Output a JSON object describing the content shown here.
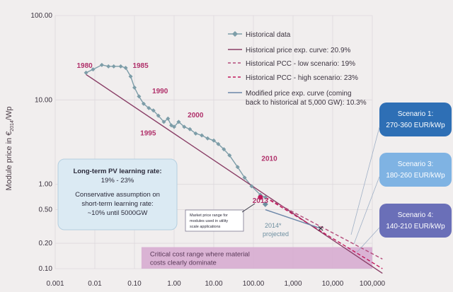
{
  "chart_data": {
    "type": "line",
    "title": "",
    "xlabel": "",
    "ylabel": "Module price in €",
    "ylabel_sub": "2014",
    "ylabel_unit": "/Wp",
    "x_scale": "log",
    "y_scale": "log",
    "xlim": [
      0.001,
      100000
    ],
    "ylim": [
      0.1,
      100
    ],
    "x_ticks": [
      {
        "value": 0.001,
        "label": "0.001"
      },
      {
        "value": 0.01,
        "label": "0.01"
      },
      {
        "value": 0.1,
        "label": "0.10"
      },
      {
        "value": 1,
        "label": "1.00"
      },
      {
        "value": 10,
        "label": "10.00"
      },
      {
        "value": 100,
        "label": "100.00"
      },
      {
        "value": 1000,
        "label": "1,000"
      },
      {
        "value": 10000,
        "label": "10,000"
      },
      {
        "value": 100000,
        "label": "100,000"
      }
    ],
    "y_ticks": [
      {
        "value": 100,
        "label": "100.00"
      },
      {
        "value": 10,
        "label": "10.00"
      },
      {
        "value": 1,
        "label": "1.00"
      },
      {
        "value": 0.5,
        "label": "0.50"
      },
      {
        "value": 0.2,
        "label": "0.20"
      },
      {
        "value": 0.1,
        "label": "0.10"
      }
    ],
    "legend_position": "top-right",
    "series": [
      {
        "name": "Historical data",
        "style": "marker-line",
        "color": "#7d9da8",
        "points": [
          [
            0.006,
            21
          ],
          [
            0.009,
            23
          ],
          [
            0.015,
            26
          ],
          [
            0.022,
            25
          ],
          [
            0.03,
            25
          ],
          [
            0.045,
            25
          ],
          [
            0.06,
            24
          ],
          [
            0.08,
            19
          ],
          [
            0.1,
            14
          ],
          [
            0.13,
            11
          ],
          [
            0.17,
            9
          ],
          [
            0.23,
            8
          ],
          [
            0.3,
            7.5
          ],
          [
            0.4,
            6.5
          ],
          [
            0.55,
            5.5
          ],
          [
            0.7,
            6
          ],
          [
            0.85,
            5
          ],
          [
            1.0,
            4.8
          ],
          [
            1.3,
            5.5
          ],
          [
            1.8,
            4.8
          ],
          [
            2.5,
            4.5
          ],
          [
            3.5,
            4
          ],
          [
            5,
            3.8
          ],
          [
            7,
            3.5
          ],
          [
            10,
            3.3
          ],
          [
            13,
            3
          ],
          [
            18,
            2.6
          ],
          [
            25,
            2.2
          ],
          [
            40,
            1.6
          ],
          [
            60,
            1.2
          ],
          [
            90,
            0.95
          ],
          [
            150,
            0.75
          ],
          [
            200,
            0.7
          ]
        ]
      },
      {
        "name": "Historical price exp. curve: 20.9%",
        "style": "solid",
        "color": "#8a3f67",
        "points": [
          [
            0.006,
            20
          ],
          [
            180000,
            0.088
          ]
        ]
      },
      {
        "name": "Historical PCC - low scenario: 19%",
        "style": "dashed",
        "color": "#b44a7a",
        "points": [
          [
            200,
            0.7
          ],
          [
            180000,
            0.13
          ]
        ]
      },
      {
        "name": "Historical PCC - high scenario: 23%",
        "style": "dashed",
        "color": "#c2185b",
        "points": [
          [
            200,
            0.7
          ],
          [
            180000,
            0.1
          ]
        ]
      },
      {
        "name": "Modified price exp. curve (coming back to historical at 5,000 GW): 10.3%",
        "legend_lines": [
          "Modified price exp. curve (coming",
          "back to historical at 5,000 GW): 10.3%"
        ],
        "style": "solid",
        "color": "#6b86a8",
        "points": [
          [
            200,
            0.5
          ],
          [
            5000,
            0.3
          ]
        ]
      }
    ],
    "year_labels": [
      {
        "label": "1980",
        "x": 0.0035,
        "y": 24
      },
      {
        "label": "1985",
        "x": 0.09,
        "y": 24
      },
      {
        "label": "1990",
        "x": 0.28,
        "y": 12
      },
      {
        "label": "1995",
        "x": 0.14,
        "y": 3.8
      },
      {
        "label": "2000",
        "x": 2.2,
        "y": 6.2
      },
      {
        "label": "2010",
        "x": 160,
        "y": 1.9
      },
      {
        "label": "2013",
        "x": 95,
        "y": 0.6
      }
    ],
    "annotations": {
      "projected_label_1": "2014*",
      "projected_label_2": "projected",
      "market_note": [
        "Market price range for",
        "modules used in utility",
        "scale applications"
      ],
      "learning_box": {
        "line1": "Long-term PV learning rate:",
        "line2": "19% - 23%",
        "line3": "Conservative assumption on",
        "line4": "short-term learning rate:",
        "line5": "~10% until 5000GW"
      },
      "critical_range": {
        "line1": "Critical cost range where material",
        "line2": "costs clearly dominate",
        "y_range": [
          0.1,
          0.18
        ],
        "x_range": [
          0.15,
          100000
        ]
      },
      "scenarios": [
        {
          "title": "Scenario 1:",
          "range": "270-360 EUR/kWp",
          "color": "#2e6fb5"
        },
        {
          "title": "Scenario 3:",
          "range": "180-260 EUR/kWp",
          "color": "#7fb3e3"
        },
        {
          "title": "Scenario 4:",
          "range": "140-210 EUR/kWp",
          "color": "#6a6fb8"
        }
      ]
    }
  }
}
